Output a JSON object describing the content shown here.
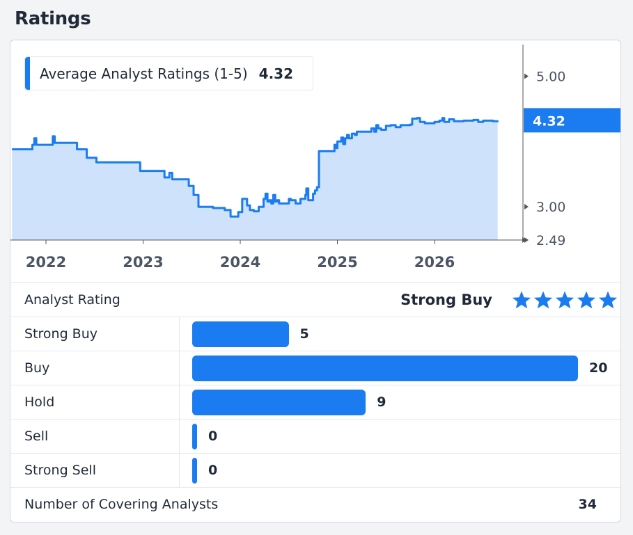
{
  "heading": "Ratings",
  "legend": {
    "label": "Average Analyst Ratings (1-5)",
    "value": "4.32"
  },
  "summary": {
    "label": "Analyst Rating",
    "value": "Strong Buy",
    "stars_filled": 5,
    "stars_total": 5
  },
  "distribution": [
    {
      "label": "Strong Buy",
      "count": 5
    },
    {
      "label": "Buy",
      "count": 20
    },
    {
      "label": "Hold",
      "count": 9
    },
    {
      "label": "Sell",
      "count": 0
    },
    {
      "label": "Strong Sell",
      "count": 0
    }
  ],
  "total": {
    "label": "Number of Covering Analysts",
    "value": "34"
  },
  "colors": {
    "accent": "#1a7cf0",
    "area_fill": "#cfe2fb",
    "axis": "#555555",
    "text": "#1f2937"
  },
  "chart_data": {
    "type": "area",
    "title": "Average Analyst Ratings (1-5)",
    "xlabel": "",
    "ylabel": "",
    "x_tick_labels": [
      "2022",
      "2023",
      "2024",
      "2025",
      "2026"
    ],
    "y_tick_labels": [
      "5.00",
      "3.00",
      "2.49"
    ],
    "y_ticks": [
      5.0,
      3.0,
      2.49
    ],
    "ylim": [
      2.49,
      5.55
    ],
    "xlim": [
      2021.65,
      2027.05
    ],
    "current_value": 4.32,
    "current_value_label": "4.32",
    "grid": false,
    "series": [
      {
        "name": "Average Analyst Ratings (1-5)",
        "points": [
          [
            2021.65,
            3.88
          ],
          [
            2021.85,
            3.88
          ],
          [
            2021.86,
            3.95
          ],
          [
            2021.88,
            4.05
          ],
          [
            2021.9,
            3.95
          ],
          [
            2022.0,
            3.95
          ],
          [
            2022.05,
            3.95
          ],
          [
            2022.07,
            4.08
          ],
          [
            2022.09,
            3.98
          ],
          [
            2022.3,
            3.98
          ],
          [
            2022.32,
            3.88
          ],
          [
            2022.4,
            3.88
          ],
          [
            2022.42,
            3.75
          ],
          [
            2022.5,
            3.75
          ],
          [
            2022.52,
            3.68
          ],
          [
            2022.95,
            3.68
          ],
          [
            2022.97,
            3.55
          ],
          [
            2023.2,
            3.55
          ],
          [
            2023.22,
            3.45
          ],
          [
            2023.25,
            3.45
          ],
          [
            2023.27,
            3.52
          ],
          [
            2023.3,
            3.42
          ],
          [
            2023.45,
            3.42
          ],
          [
            2023.47,
            3.32
          ],
          [
            2023.5,
            3.32
          ],
          [
            2023.52,
            3.18
          ],
          [
            2023.55,
            3.18
          ],
          [
            2023.57,
            3.0
          ],
          [
            2023.7,
            3.0
          ],
          [
            2023.72,
            2.98
          ],
          [
            2023.82,
            2.98
          ],
          [
            2023.84,
            2.95
          ],
          [
            2023.88,
            2.95
          ],
          [
            2023.9,
            2.85
          ],
          [
            2023.96,
            2.85
          ],
          [
            2023.98,
            2.92
          ],
          [
            2024.0,
            2.92
          ],
          [
            2024.02,
            3.12
          ],
          [
            2024.05,
            3.12
          ],
          [
            2024.07,
            3.02
          ],
          [
            2024.1,
            2.95
          ],
          [
            2024.12,
            2.95
          ],
          [
            2024.14,
            2.93
          ],
          [
            2024.17,
            2.93
          ],
          [
            2024.19,
            3.0
          ],
          [
            2024.22,
            3.0
          ],
          [
            2024.24,
            3.12
          ],
          [
            2024.26,
            3.2
          ],
          [
            2024.28,
            3.08
          ],
          [
            2024.3,
            3.1
          ],
          [
            2024.32,
            3.05
          ],
          [
            2024.34,
            3.18
          ],
          [
            2024.36,
            3.08
          ],
          [
            2024.38,
            3.1
          ],
          [
            2024.4,
            3.05
          ],
          [
            2024.48,
            3.05
          ],
          [
            2024.5,
            3.12
          ],
          [
            2024.52,
            3.1
          ],
          [
            2024.55,
            3.1
          ],
          [
            2024.57,
            3.05
          ],
          [
            2024.6,
            3.05
          ],
          [
            2024.62,
            3.12
          ],
          [
            2024.65,
            3.12
          ],
          [
            2024.67,
            3.18
          ],
          [
            2024.68,
            3.28
          ],
          [
            2024.7,
            3.1
          ],
          [
            2024.73,
            3.1
          ],
          [
            2024.75,
            3.2
          ],
          [
            2024.77,
            3.25
          ],
          [
            2024.79,
            3.3
          ],
          [
            2024.81,
            3.85
          ],
          [
            2024.95,
            3.85
          ],
          [
            2024.97,
            3.95
          ],
          [
            2024.99,
            3.9
          ],
          [
            2025.0,
            4.0
          ],
          [
            2025.04,
            4.06
          ],
          [
            2025.06,
            3.96
          ],
          [
            2025.08,
            4.05
          ],
          [
            2025.1,
            4.1
          ],
          [
            2025.12,
            4.05
          ],
          [
            2025.15,
            4.12
          ],
          [
            2025.18,
            4.1
          ],
          [
            2025.2,
            4.15
          ],
          [
            2025.25,
            4.15
          ],
          [
            2025.3,
            4.15
          ],
          [
            2025.35,
            4.2
          ],
          [
            2025.38,
            4.15
          ],
          [
            2025.4,
            4.25
          ],
          [
            2025.42,
            4.2
          ],
          [
            2025.45,
            4.18
          ],
          [
            2025.5,
            4.24
          ],
          [
            2025.55,
            4.25
          ],
          [
            2025.6,
            4.22
          ],
          [
            2025.65,
            4.25
          ],
          [
            2025.7,
            4.25
          ],
          [
            2025.75,
            4.26
          ],
          [
            2025.77,
            4.35
          ],
          [
            2025.82,
            4.36
          ],
          [
            2025.85,
            4.3
          ],
          [
            2025.9,
            4.28
          ],
          [
            2025.95,
            4.28
          ],
          [
            2026.0,
            4.3
          ],
          [
            2026.05,
            4.32
          ],
          [
            2026.08,
            4.36
          ],
          [
            2026.1,
            4.3
          ],
          [
            2026.15,
            4.34
          ],
          [
            2026.2,
            4.31
          ],
          [
            2026.3,
            4.32
          ],
          [
            2026.4,
            4.33
          ],
          [
            2026.45,
            4.3
          ],
          [
            2026.5,
            4.32
          ],
          [
            2026.6,
            4.31
          ],
          [
            2026.65,
            4.32
          ]
        ]
      }
    ]
  }
}
